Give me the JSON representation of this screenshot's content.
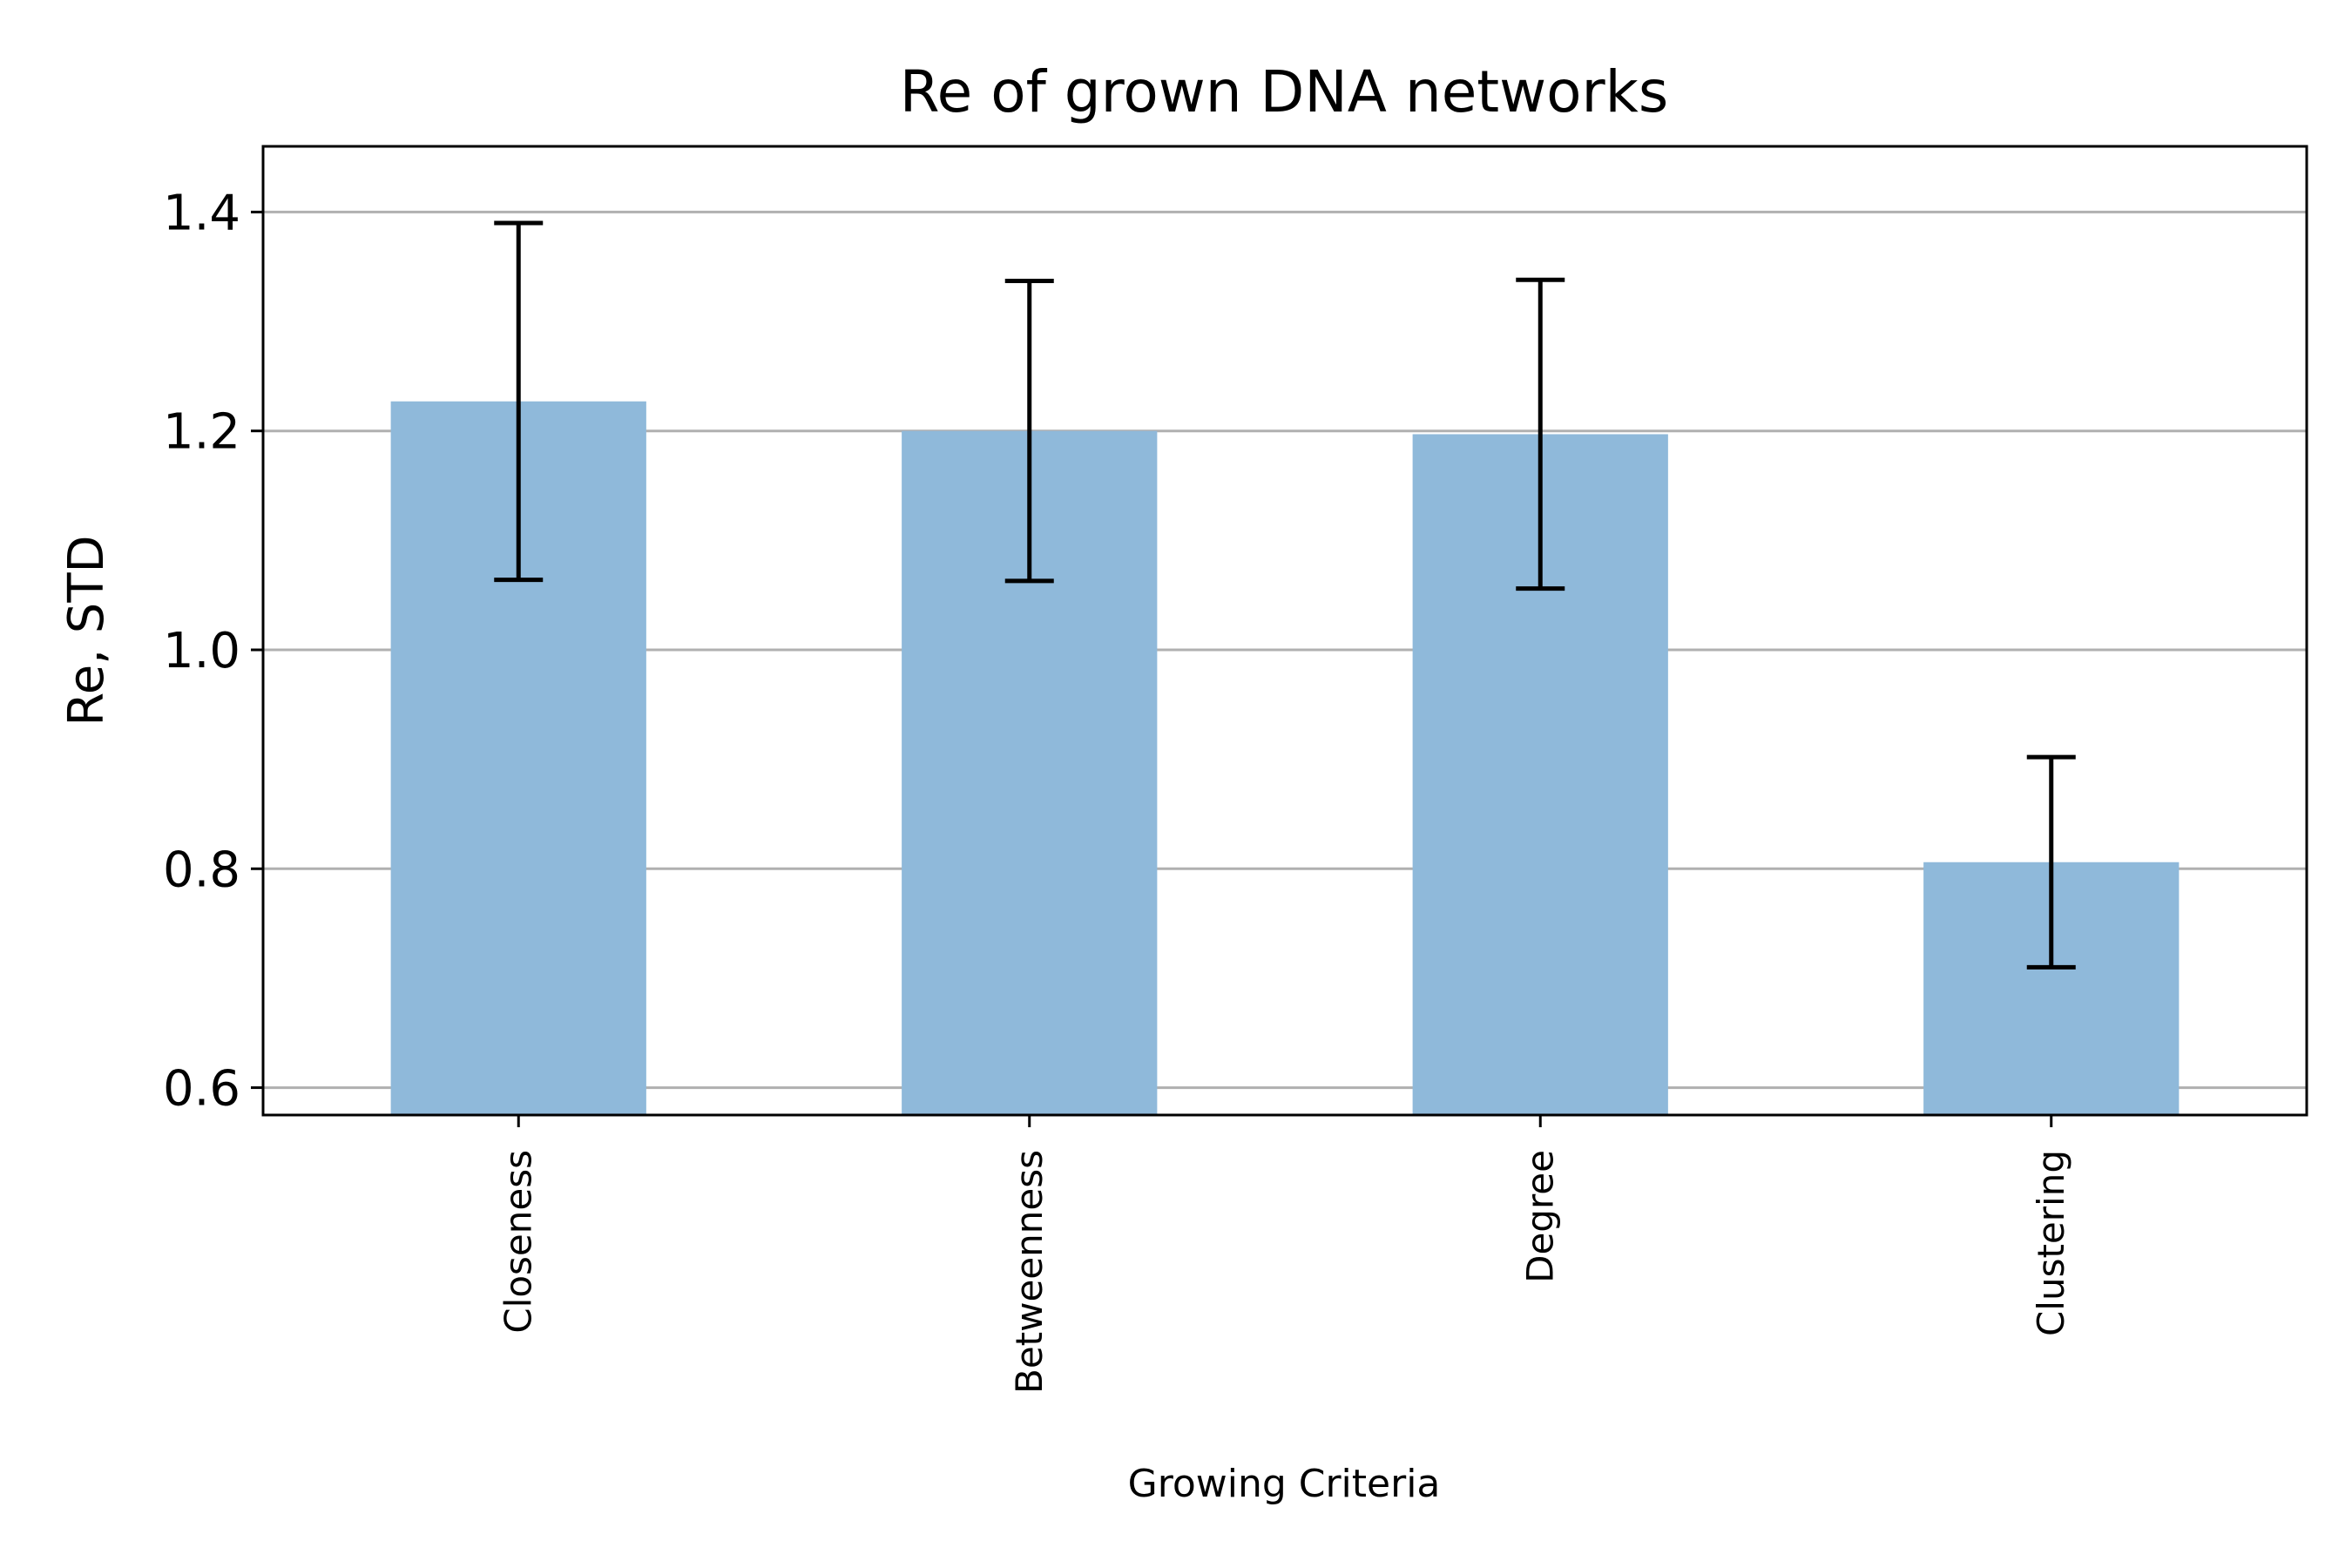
{
  "chart_data": {
    "type": "bar",
    "title": "Re of grown DNA networks",
    "xlabel": "Growing Criteria",
    "ylabel": "Re, STD",
    "categories": [
      "Closeness",
      "Betweenness",
      "Degree",
      "Clustering"
    ],
    "values": [
      1.227,
      1.2,
      1.197,
      0.806
    ],
    "error": [
      0.163,
      0.137,
      0.141,
      0.096
    ],
    "ylim": [
      0.575,
      1.46
    ],
    "yticks": [
      0.6,
      0.8,
      1.0,
      1.2,
      1.4
    ],
    "ytick_labels": [
      "0.6",
      "0.8",
      "1.0",
      "1.2",
      "1.4"
    ],
    "grid": "y",
    "legend": "none",
    "bar_color": "#8fb9da",
    "error_color": "#000000",
    "grid_color": "#b0b0b0"
  }
}
